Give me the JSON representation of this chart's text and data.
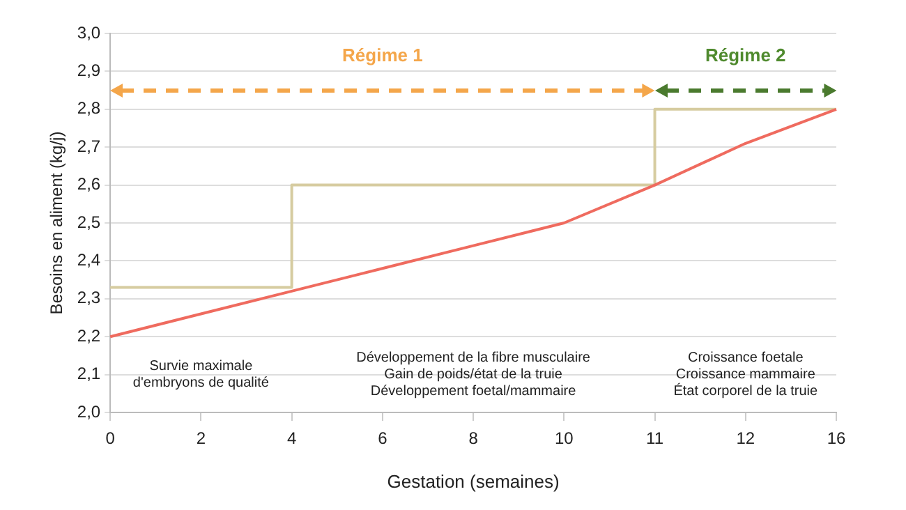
{
  "chart_data": {
    "type": "line",
    "xlabel": "Gestation (semaines)",
    "ylabel": "Besoins en aliment (kg/j)",
    "categories": [
      "0",
      "2",
      "4",
      "6",
      "8",
      "10",
      "11",
      "12",
      "16"
    ],
    "series": [
      {
        "type": "step",
        "color": "#d6cca0",
        "values": [
          2.33,
          2.33,
          2.6,
          2.6,
          2.6,
          2.6,
          2.8,
          2.8,
          2.8
        ]
      },
      {
        "color": "#ef6b5f",
        "values": [
          2.2,
          2.26,
          2.32,
          2.38,
          2.44,
          2.5,
          2.6,
          2.71,
          2.8
        ]
      }
    ],
    "ylim": [
      2.0,
      3.0
    ],
    "yticks": [
      {
        "value": 2.0,
        "label": "2,0"
      },
      {
        "value": 2.1,
        "label": "2,1"
      },
      {
        "value": 2.2,
        "label": "2,2"
      },
      {
        "value": 2.3,
        "label": "2,3"
      },
      {
        "value": 2.4,
        "label": "2,4"
      },
      {
        "value": 2.5,
        "label": "2,5"
      },
      {
        "value": 2.6,
        "label": "2,6"
      },
      {
        "value": 2.7,
        "label": "2,7"
      },
      {
        "value": 2.8,
        "label": "2,8"
      },
      {
        "value": 2.9,
        "label": "2,9"
      },
      {
        "value": 3.0,
        "label": "3,0"
      }
    ],
    "grid": "y",
    "legend": false,
    "marker": "none",
    "line_style": "solid",
    "annotations": [
      "Régime 1",
      "Régime 2",
      "Survie maximale\nd'embryons de qualité",
      "Développement de la fibre musculaire\nGain de poids/état de la truie\nDéveloppement foetal/mammaire",
      "Croissance foetale\nCroissance mammaire\nÉtat corporel de la truie"
    ]
  }
}
